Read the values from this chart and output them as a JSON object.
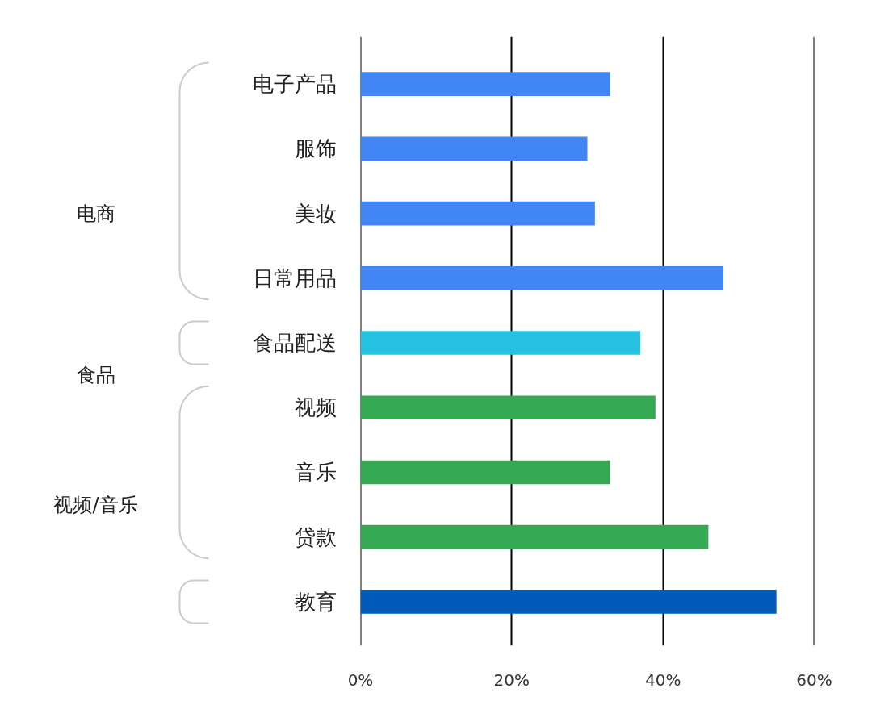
{
  "chart_data": {
    "type": "bar",
    "orientation": "horizontal",
    "categories": [
      "电子产品",
      "服饰",
      "美妆",
      "日常用品",
      "食品配送",
      "视频",
      "音乐",
      "贷款",
      "教育"
    ],
    "values": [
      33,
      30,
      31,
      48,
      37,
      39,
      33,
      46,
      55
    ],
    "colors": [
      "#4285f4",
      "#4285f4",
      "#4285f4",
      "#4285f4",
      "#24c1e0",
      "#34a853",
      "#34a853",
      "#34a853",
      "#005bbb"
    ],
    "xlim": [
      0,
      60
    ],
    "xticks": [
      {
        "value": 0,
        "label": "0%"
      },
      {
        "value": 20,
        "label": "20%"
      },
      {
        "value": 40,
        "label": "40%"
      },
      {
        "value": 60,
        "label": "60%"
      }
    ],
    "grid": "x",
    "annotations": [
      "电商",
      "食品",
      "视频/音乐"
    ]
  }
}
